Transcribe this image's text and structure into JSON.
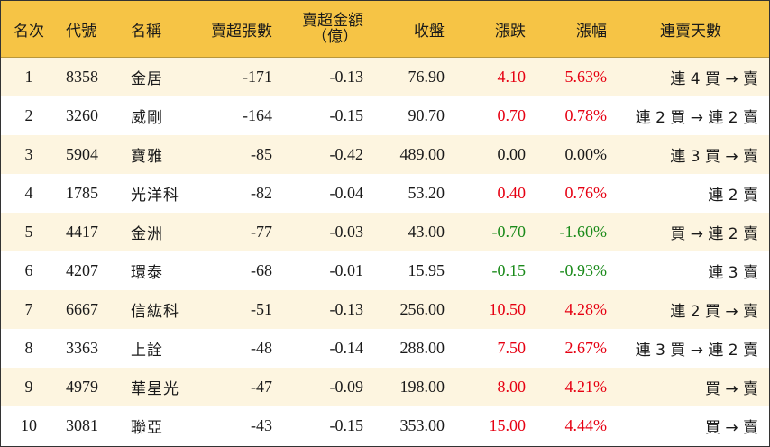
{
  "colors": {
    "header_bg": "#f6c445",
    "odd_row_bg": "#fdf5e0",
    "even_row_bg": "#ffffff",
    "up": "#e60012",
    "down": "#1a8a1a",
    "flat": "#1a1a1a"
  },
  "header": {
    "rank": "名次",
    "code": "代號",
    "name": "名稱",
    "sell_shares": "賣超張數",
    "sell_amount_line1": "賣超金額",
    "sell_amount_line2": "（億）",
    "close": "收盤",
    "change": "漲跌",
    "pct": "漲幅",
    "days": "連賣天數"
  },
  "rows": [
    {
      "rank": "1",
      "code": "8358",
      "name": "金居",
      "shares": "-171",
      "amount": "-0.13",
      "close": "76.90",
      "change": "4.10",
      "pct": "5.63%",
      "days": "連 4 買 → 賣",
      "trend": "up"
    },
    {
      "rank": "2",
      "code": "3260",
      "name": "威剛",
      "shares": "-164",
      "amount": "-0.15",
      "close": "90.70",
      "change": "0.70",
      "pct": "0.78%",
      "days": "連 2 買 → 連 2 賣",
      "trend": "up"
    },
    {
      "rank": "3",
      "code": "5904",
      "name": "寶雅",
      "shares": "-85",
      "amount": "-0.42",
      "close": "489.00",
      "change": "0.00",
      "pct": "0.00%",
      "days": "連 3 買 → 賣",
      "trend": "flat"
    },
    {
      "rank": "4",
      "code": "1785",
      "name": "光洋科",
      "shares": "-82",
      "amount": "-0.04",
      "close": "53.20",
      "change": "0.40",
      "pct": "0.76%",
      "days": "連 2 賣",
      "trend": "up"
    },
    {
      "rank": "5",
      "code": "4417",
      "name": "金洲",
      "shares": "-77",
      "amount": "-0.03",
      "close": "43.00",
      "change": "-0.70",
      "pct": "-1.60%",
      "days": "買 → 連 2 賣",
      "trend": "down"
    },
    {
      "rank": "6",
      "code": "4207",
      "name": "環泰",
      "shares": "-68",
      "amount": "-0.01",
      "close": "15.95",
      "change": "-0.15",
      "pct": "-0.93%",
      "days": "連 3 賣",
      "trend": "down"
    },
    {
      "rank": "7",
      "code": "6667",
      "name": "信紘科",
      "shares": "-51",
      "amount": "-0.13",
      "close": "256.00",
      "change": "10.50",
      "pct": "4.28%",
      "days": "連 2 買 → 賣",
      "trend": "up"
    },
    {
      "rank": "8",
      "code": "3363",
      "name": "上詮",
      "shares": "-48",
      "amount": "-0.14",
      "close": "288.00",
      "change": "7.50",
      "pct": "2.67%",
      "days": "連 3 買 → 連 2 賣",
      "trend": "up"
    },
    {
      "rank": "9",
      "code": "4979",
      "name": "華星光",
      "shares": "-47",
      "amount": "-0.09",
      "close": "198.00",
      "change": "8.00",
      "pct": "4.21%",
      "days": "買 → 賣",
      "trend": "up"
    },
    {
      "rank": "10",
      "code": "3081",
      "name": "聯亞",
      "shares": "-43",
      "amount": "-0.15",
      "close": "353.00",
      "change": "15.00",
      "pct": "4.44%",
      "days": "買 → 賣",
      "trend": "up"
    }
  ]
}
